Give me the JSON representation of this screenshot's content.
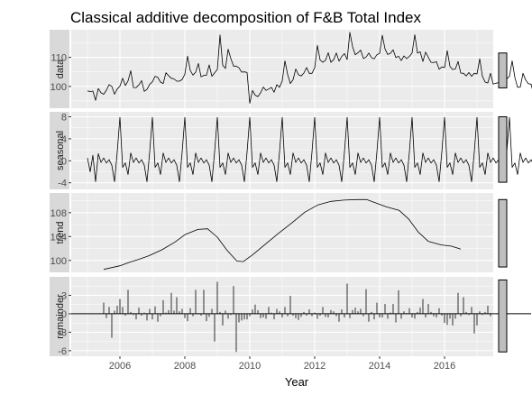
{
  "chart_data": {
    "type": "line",
    "title": "Classical additive decomposition of F&B Total Index",
    "xlabel": "Year",
    "xlim": [
      2004.5,
      2017.5
    ],
    "x_ticks": [
      2006,
      2008,
      2010,
      2012,
      2014,
      2016
    ],
    "x_tick_labels": [
      "2006",
      "2008",
      "2010",
      "2012",
      "2014",
      "2016"
    ],
    "grid": true,
    "panels": [
      {
        "name": "data",
        "style": "line",
        "ylim": [
          92.5,
          119.5
        ],
        "y_ticks": [
          100,
          110
        ],
        "y_tick_labels": [
          "100",
          "110"
        ],
        "range_bar": [
          99.5,
          111.5
        ],
        "start": 2005.0,
        "step": 0.0833333,
        "values": [
          98.5,
          98.2,
          98.4,
          95.2,
          99.3,
          97.8,
          97.3,
          98.7,
          100.6,
          100.0,
          97.3,
          99.1,
          100.1,
          102.8,
          100.3,
          101.9,
          105.4,
          99.6,
          99.6,
          100.5,
          102.0,
          98.3,
          99.0,
          100.7,
          101.6,
          103.5,
          103.1,
          101.5,
          101.0,
          104.7,
          103.7,
          102.8,
          102.6,
          101.8,
          101.8,
          102.4,
          104.2,
          110.4,
          105.5,
          103.9,
          104.9,
          107.9,
          103.3,
          103.8,
          103.9,
          107.4,
          103.5,
          104.7,
          105.8,
          117.7,
          107.3,
          106.2,
          112.8,
          109.6,
          107.0,
          107.0,
          106.4,
          104.9,
          105.0,
          104.8,
          94.2,
          98.6,
          97.0,
          96.5,
          97.8,
          99.8,
          98.6,
          99.1,
          99.7,
          98.0,
          100.6,
          99.7,
          101.9,
          108.8,
          104.1,
          101.0,
          102.3,
          106.0,
          104.0,
          103.6,
          104.6,
          106.5,
          104.5,
          104.5,
          106.4,
          114.1,
          109.1,
          108.3,
          109.0,
          111.6,
          108.3,
          109.2,
          111.5,
          108.7,
          110.3,
          111.3,
          109.3,
          118.6,
          113.7,
          110.9,
          111.6,
          112.5,
          109.6,
          110.1,
          111.5,
          109.9,
          109.5,
          110.9,
          111.4,
          117.6,
          112.9,
          111.0,
          111.4,
          112.6,
          109.9,
          110.4,
          108.9,
          110.5,
          109.6,
          110.3,
          111.5,
          117.8,
          111.5,
          111.9,
          108.6,
          111.8,
          110.0,
          108.3,
          108.2,
          108.5,
          105.9,
          106.7,
          106.5,
          112.3,
          106.9,
          105.8,
          106.0,
          108.6,
          104.6,
          104.5,
          103.6,
          104.8,
          103.5,
          104.5,
          104.3,
          109.5,
          103.5,
          101.5,
          101.2,
          104.5,
          100.8,
          101.1,
          101.3,
          102.3,
          102.2,
          102.6,
          103.5,
          108.8,
          103.1,
          99.7,
          99.8,
          104.5,
          102.2,
          100.9,
          100.8,
          97.0,
          103.1,
          105.2
        ]
      },
      {
        "name": "seasonal",
        "style": "line",
        "ylim": [
          -5.2,
          8.9
        ],
        "y_ticks": [
          -4,
          0,
          4,
          8
        ],
        "y_tick_labels": [
          "-4",
          "0",
          "4",
          "8"
        ],
        "range_bar": [
          -3.9,
          8.0
        ],
        "start": 2005.0,
        "step": 0.0833333,
        "pattern": [
          0.3,
          -0.9,
          1.2,
          -2.6,
          1.2,
          -0.9,
          -0.2,
          -1.9,
          0.2,
          -2.4,
          -0.2,
          1.4,
          -3.9,
          0.4,
          -1.2,
          7.9,
          0.3,
          -1.2
        ],
        "pattern_note_values": [],
        "values": [
          0.5,
          -2.0,
          1.0,
          -3.8,
          1.3,
          -0.3,
          0.5,
          -0.4,
          0.2,
          -0.8,
          -3.8,
          1.6,
          7.9,
          -1.2,
          -0.4,
          -2.5,
          1.4,
          -0.3,
          0.5,
          -0.4,
          0.2,
          -0.8,
          -3.8,
          1.6,
          7.9,
          -1.2,
          -0.4,
          -2.5,
          1.4,
          -0.3,
          0.5,
          -0.4,
          0.2,
          -0.8,
          -3.8,
          1.6,
          7.9,
          -1.2,
          -0.4,
          -2.5,
          1.4,
          -0.3,
          0.5,
          -0.4,
          0.2,
          -0.8,
          -3.8,
          1.6,
          7.9,
          -1.2,
          -0.4,
          -2.5,
          1.4,
          -0.3,
          0.5,
          -0.4,
          0.2,
          -0.8,
          -3.8,
          1.6,
          7.9,
          -1.2,
          -0.4,
          -2.5,
          1.4,
          -0.3,
          0.5,
          -0.4,
          0.2,
          -0.8,
          -3.8,
          1.6,
          7.9,
          -1.2,
          -0.4,
          -2.5,
          1.4,
          -0.3,
          0.5,
          -0.4,
          0.2,
          -0.8,
          -3.8,
          1.6,
          7.9,
          -1.2,
          -0.4,
          -2.5,
          1.4,
          -0.3,
          0.5,
          -0.4,
          0.2,
          -0.8,
          -3.8,
          1.6,
          7.9,
          -1.2,
          -0.4,
          -2.5,
          1.4,
          -0.3,
          0.5,
          -0.4,
          0.2,
          -0.8,
          -3.8,
          1.6,
          7.9,
          -1.2,
          -0.4,
          -2.5,
          1.4,
          -0.3,
          0.5,
          -0.4,
          0.2,
          -0.8,
          -3.8,
          1.6,
          7.9,
          -1.2,
          -0.4,
          -2.5,
          1.4,
          -0.3,
          0.5,
          -0.4,
          0.2,
          -0.8,
          -3.8,
          1.6,
          7.9,
          -1.2,
          -0.4,
          -2.5,
          1.4,
          -0.3,
          0.5,
          -0.4,
          0.2,
          -0.8,
          -3.8,
          1.6,
          7.9,
          -1.2,
          -0.4,
          -2.5,
          1.4,
          -0.3,
          0.5,
          -0.4,
          0.2,
          -0.8,
          -3.8,
          1.6,
          7.9,
          -1.2,
          -0.4,
          -2.5,
          1.4,
          -0.3,
          0.5,
          -0.4,
          0.2,
          -0.8,
          -3.8,
          1.6
        ]
      },
      {
        "name": "trend",
        "style": "line",
        "ylim": [
          98.0,
          111.3
        ],
        "y_ticks": [
          100,
          104,
          108
        ],
        "y_tick_labels": [
          "100",
          "104",
          "108"
        ],
        "range_bar": [
          98.9,
          110.2
        ],
        "points": [
          [
            2005.5,
            98.5
          ],
          [
            2006.0,
            99.1
          ],
          [
            2006.3,
            99.7
          ],
          [
            2006.6,
            100.2
          ],
          [
            2006.9,
            100.8
          ],
          [
            2007.3,
            101.8
          ],
          [
            2007.7,
            103.1
          ],
          [
            2008.0,
            104.3
          ],
          [
            2008.4,
            105.2
          ],
          [
            2008.7,
            105.3
          ],
          [
            2009.0,
            103.9
          ],
          [
            2009.3,
            101.7
          ],
          [
            2009.6,
            99.9
          ],
          [
            2009.8,
            99.8
          ],
          [
            2010.1,
            101.0
          ],
          [
            2010.5,
            102.8
          ],
          [
            2010.9,
            104.6
          ],
          [
            2011.3,
            106.3
          ],
          [
            2011.7,
            108.1
          ],
          [
            2012.1,
            109.3
          ],
          [
            2012.5,
            109.9
          ],
          [
            2012.9,
            110.1
          ],
          [
            2013.3,
            110.2
          ],
          [
            2013.6,
            110.2
          ],
          [
            2013.9,
            109.6
          ],
          [
            2014.2,
            109.0
          ],
          [
            2014.6,
            108.4
          ],
          [
            2014.9,
            106.9
          ],
          [
            2015.2,
            104.7
          ],
          [
            2015.5,
            103.2
          ],
          [
            2015.9,
            102.6
          ],
          [
            2016.2,
            102.4
          ],
          [
            2016.5,
            101.9
          ]
        ]
      },
      {
        "name": "remainder",
        "style": "bar",
        "ylim": [
          -6.9,
          6.0
        ],
        "y_ticks": [
          -6,
          -3,
          0,
          3
        ],
        "y_tick_labels": [
          "-6",
          "-3",
          "0",
          "3"
        ],
        "range_bar": [
          -6.2,
          5.5
        ],
        "start": 2005.5,
        "step": 0.0833333,
        "values": [
          1.8,
          -0.7,
          1.1,
          -3.9,
          0.5,
          1.3,
          2.4,
          1.1,
          -0.3,
          3.9,
          0.3,
          -0.2,
          -0.9,
          1.0,
          -0.3,
          0.2,
          -1.1,
          0.8,
          -0.9,
          1.2,
          -1.3,
          -0.4,
          2.2,
          0.2,
          0.6,
          3.4,
          0.5,
          2.7,
          0.4,
          0.8,
          -0.7,
          -1.2,
          0.9,
          -0.4,
          3.9,
          0.1,
          -0.3,
          3.9,
          -1.2,
          -0.5,
          0.8,
          -4.5,
          5.2,
          0.3,
          -1.9,
          0.5,
          -0.8,
          -0.2,
          4.5,
          -6.2,
          -1.4,
          -1.1,
          -0.9,
          -0.9,
          -0.4,
          0.7,
          1.5,
          0.6,
          -0.7,
          -0.6,
          -0.8,
          1.1,
          0.2,
          -0.9,
          0.8,
          0.4,
          -0.6,
          1.1,
          -0.4,
          2.9,
          -0.3,
          -0.7,
          -1.0,
          -0.5,
          0.3,
          -0.3,
          0.7,
          -0.4,
          0.2,
          -0.8,
          -0.3,
          1.1,
          -0.5,
          -0.6,
          0.6,
          0.4,
          -0.4,
          -1.3,
          0.7,
          -0.6,
          4.9,
          -0.7,
          0.6,
          1.0,
          0.4,
          0.8,
          -0.4,
          4.0,
          -1.3,
          0.3,
          -0.9,
          1.8,
          -0.6,
          -0.6,
          1.6,
          -0.8,
          0.2,
          1.6,
          -1.4,
          3.8,
          -0.8,
          0.4,
          0.1,
          0.9,
          -0.6,
          -0.8,
          0.3,
          1.0,
          2.4,
          -0.6,
          1.6,
          0.3,
          -0.4,
          -0.6,
          0.9,
          -0.3,
          -1.5,
          -1.8,
          -0.8,
          -1.9,
          -0.8,
          3.4,
          -0.4,
          2.7,
          0.3,
          -0.2,
          1.1,
          -3.2,
          -1.9,
          0.4,
          -0.2,
          0.3,
          1.3,
          -0.4
        ]
      }
    ]
  }
}
